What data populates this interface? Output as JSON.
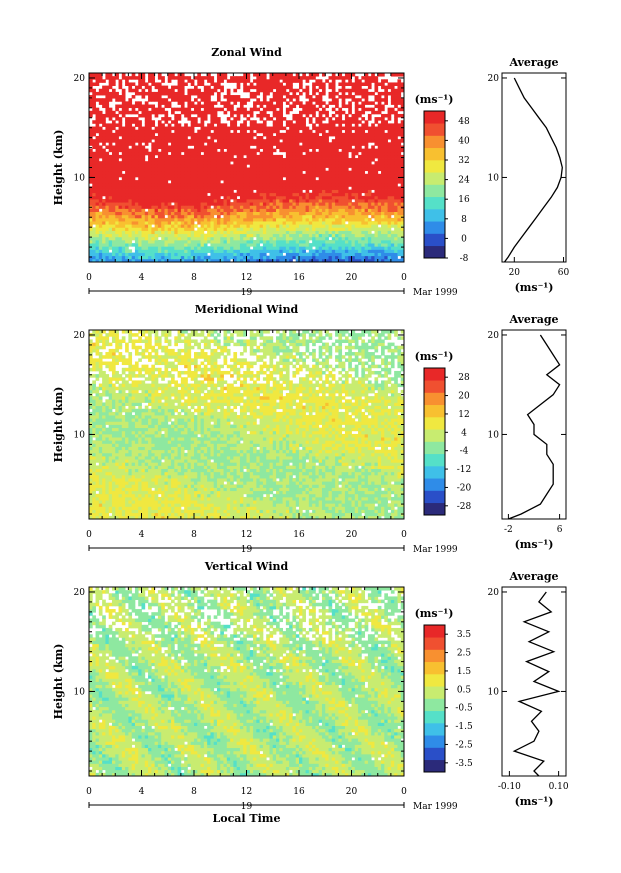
{
  "figure": {
    "xlabel_bottom": "Local Time",
    "date_label": "Mar 1999",
    "day_label": "19",
    "ylabel": "Height (km)",
    "units": "(ms⁻¹)",
    "avg_title": "Average",
    "avg_unit": "(ms⁻¹)"
  },
  "chart_data": [
    {
      "type": "heatmap",
      "title": "Zonal Wind",
      "xlabel": "Local Time",
      "ylabel": "Height (km)",
      "x_ticks": [
        "0",
        "4",
        "8",
        "12",
        "16",
        "20",
        "0"
      ],
      "xlim": [
        0,
        24
      ],
      "y_ticks": [
        "20",
        "10"
      ],
      "ylim": [
        1.5,
        20.5
      ],
      "colorbar_ticks": [
        "48",
        "40",
        "32",
        "24",
        "16",
        "8",
        "0",
        "-8"
      ],
      "colorbar_range": [
        -8,
        52
      ],
      "colormap": [
        "#2b2a7a",
        "#2a4fc8",
        "#2f8ce8",
        "#3fc0e8",
        "#55e0c8",
        "#8ee8a0",
        "#c8ec70",
        "#f0e840",
        "#f8c030",
        "#f89030",
        "#f05030",
        "#e82828"
      ],
      "profile": {
        "title": "Average",
        "xlabel": "(ms⁻¹)",
        "x_ticks": [
          "20",
          "60"
        ],
        "xlim": [
          10,
          62
        ],
        "heights": [
          1.5,
          2,
          3,
          4,
          5,
          6,
          7,
          8,
          9,
          10,
          11,
          12,
          13,
          14,
          15,
          16,
          17,
          18,
          19,
          20
        ],
        "values": [
          12,
          15,
          20,
          26,
          32,
          38,
          44,
          50,
          55,
          58,
          59,
          57,
          54,
          50,
          46,
          40,
          34,
          28,
          24,
          20
        ]
      }
    },
    {
      "type": "heatmap",
      "title": "Meridional Wind",
      "xlabel": "Local Time",
      "ylabel": "Height (km)",
      "x_ticks": [
        "0",
        "4",
        "8",
        "12",
        "16",
        "20",
        "0"
      ],
      "xlim": [
        0,
        24
      ],
      "y_ticks": [
        "20",
        "10"
      ],
      "ylim": [
        1.5,
        20.5
      ],
      "colorbar_ticks": [
        "28",
        "20",
        "12",
        "4",
        "-4",
        "-12",
        "-20",
        "-28"
      ],
      "colorbar_range": [
        -32,
        32
      ],
      "colormap": [
        "#2b2a7a",
        "#2a4fc8",
        "#2f8ce8",
        "#3fc0e8",
        "#55e0c8",
        "#8ee8a0",
        "#c8ec70",
        "#f0e840",
        "#f8c030",
        "#f89030",
        "#f05030",
        "#e82828"
      ],
      "profile": {
        "title": "Average",
        "xlabel": "(ms⁻¹)",
        "x_ticks": [
          "-2",
          "6"
        ],
        "xlim": [
          -3,
          7
        ],
        "heights": [
          1.5,
          2,
          3,
          4,
          5,
          6,
          7,
          8,
          9,
          10,
          11,
          12,
          13,
          14,
          15,
          16,
          17,
          18,
          19,
          20
        ],
        "values": [
          -2,
          0,
          3,
          4,
          5,
          5,
          5,
          4,
          4,
          2,
          2,
          1,
          3,
          5,
          6,
          4,
          6,
          5,
          4,
          3
        ]
      }
    },
    {
      "type": "heatmap",
      "title": "Vertical Wind",
      "xlabel": "Local Time",
      "ylabel": "Height (km)",
      "x_ticks": [
        "0",
        "4",
        "8",
        "12",
        "16",
        "20",
        "0"
      ],
      "xlim": [
        0,
        24
      ],
      "y_ticks": [
        "20",
        "10"
      ],
      "ylim": [
        1.5,
        20.5
      ],
      "colorbar_ticks": [
        "3.5",
        "2.5",
        "1.5",
        "0.5",
        "-0.5",
        "-1.5",
        "-2.5",
        "-3.5"
      ],
      "colorbar_range": [
        -4,
        4
      ],
      "colormap": [
        "#2b2a7a",
        "#2a4fc8",
        "#2f8ce8",
        "#3fc0e8",
        "#55e0c8",
        "#8ee8a0",
        "#c8ec70",
        "#f0e840",
        "#f8c030",
        "#f89030",
        "#f05030",
        "#e82828"
      ],
      "profile": {
        "title": "Average",
        "xlabel": "(ms⁻¹)",
        "x_ticks": [
          "-0.10",
          "0.10"
        ],
        "xlim": [
          -0.13,
          0.13
        ],
        "heights": [
          1.5,
          2,
          3,
          4,
          5,
          6,
          7,
          8,
          9,
          10,
          11,
          12,
          13,
          14,
          15,
          16,
          17,
          18,
          19,
          20
        ],
        "values": [
          0.02,
          0.0,
          0.04,
          -0.08,
          0.0,
          0.02,
          -0.01,
          0.03,
          -0.06,
          0.1,
          0.0,
          0.06,
          -0.03,
          0.08,
          -0.02,
          0.06,
          -0.04,
          0.07,
          0.02,
          0.05
        ]
      }
    }
  ]
}
